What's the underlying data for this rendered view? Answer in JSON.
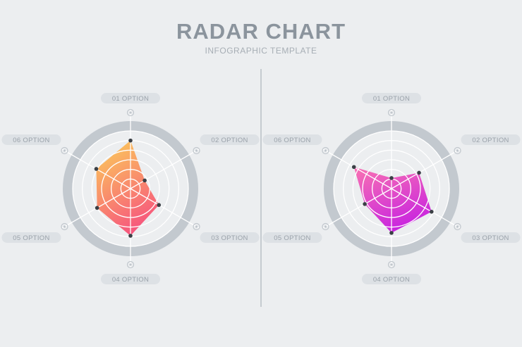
{
  "header": {
    "title": "RADAR CHART",
    "subtitle": "INFOGRAPHIC TEMPLATE"
  },
  "chart_data": [
    {
      "type": "radar",
      "axes": [
        "01 OPTION",
        "02 OPTION",
        "03 OPTION",
        "04 OPTION",
        "05 OPTION",
        "06 OPTION"
      ],
      "rings": 6,
      "range": [
        0,
        6
      ],
      "values": [
        5.0,
        1.7,
        3.4,
        4.9,
        4.0,
        4.1
      ],
      "gradient": [
        "#fbc55b",
        "#f64e80"
      ]
    },
    {
      "type": "radar",
      "axes": [
        "01 OPTION",
        "02 OPTION",
        "03 OPTION",
        "04 OPTION",
        "05 OPTION",
        "06 OPTION"
      ],
      "rings": 6,
      "range": [
        0,
        6
      ],
      "values": [
        1.1,
        3.3,
        4.8,
        4.6,
        3.2,
        4.5
      ],
      "gradient": [
        "#f46bb6",
        "#c51ee3"
      ]
    }
  ],
  "colors": {
    "background": "#eceef0",
    "track": "#c3c9cf",
    "ring_line": "#ffffff",
    "dot": "#3a3f45",
    "pill": "#dde1e5",
    "pill_text": "#9aa2aa"
  }
}
